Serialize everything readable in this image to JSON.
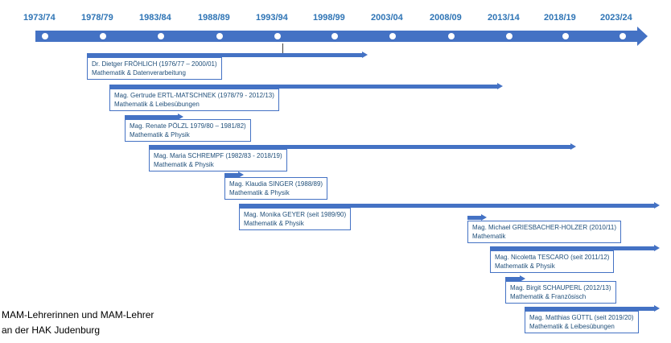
{
  "colors": {
    "timeline": "#4472C4",
    "year_text": "#2E74B5",
    "label_text": "#1F4E79"
  },
  "timeline": {
    "years": [
      "1973/74",
      "1978/79",
      "1983/84",
      "1988/89",
      "1993/94",
      "1998/99",
      "2003/04",
      "2008/09",
      "2013/14",
      "2018/19",
      "2023/24"
    ]
  },
  "teachers": [
    {
      "name": "Dr. Dietger FRÖHLICH (1976/77 – 2000/01)",
      "subjects": "Mathematik & Datenverarbeitung"
    },
    {
      "name": "Mag. Gertrude ERTL-MATSCHNEK (1978/79 - 2012/13)",
      "subjects": "Mathematik & Leibesübungen"
    },
    {
      "name": "Mag. Renate PÖLZL 1979/80 – 1981/82)",
      "subjects": "Mathematik & Physik"
    },
    {
      "name": "Mag. Maria SCHREMPF (1982/83 - 2018/19)",
      "subjects": "Mathematik & Physik"
    },
    {
      "name": "Mag. Klaudia SINGER (1988/89)",
      "subjects": "Mathematik & Physik"
    },
    {
      "name": "Mag. Monika GEYER (seit 1989/90)",
      "subjects": "Mathematik & Physik"
    },
    {
      "name": "Mag. Michael GRIESBACHER-HOLZER (2010/11)",
      "subjects": "Mathematik"
    },
    {
      "name": "Mag. Nicoletta TESCARO (seit 2011/12)",
      "subjects": "Mathematik & Physik"
    },
    {
      "name": "Mag. Birgit SCHAUPERL (2012/13)",
      "subjects": "Mathematik & Französisch"
    },
    {
      "name": "Mag. Matthias GÜTTL (seit 2019/20)",
      "subjects": "Mathematik & Leibesübungen"
    }
  ],
  "caption": {
    "line1": "MAM-Lehrerinnen und MAM-Lehrer",
    "line2": "an der HAK Judenburg"
  }
}
